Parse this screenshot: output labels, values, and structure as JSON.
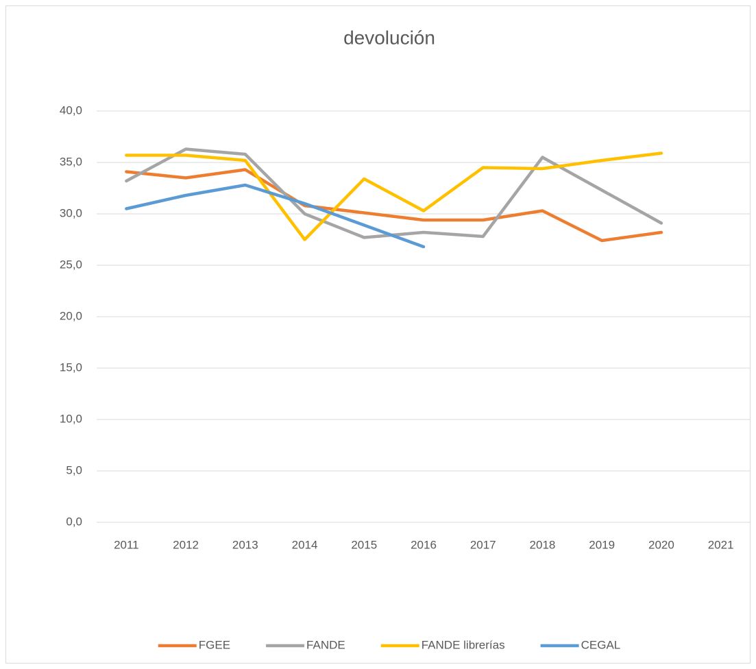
{
  "chart_data": {
    "type": "line",
    "title": "devolución",
    "categories": [
      "2011",
      "2012",
      "2013",
      "2014",
      "2015",
      "2016",
      "2017",
      "2018",
      "2019",
      "2020",
      "2021"
    ],
    "series": [
      {
        "name": "FGEE",
        "color": "#ed7d31",
        "values": [
          34.1,
          33.5,
          34.3,
          30.8,
          30.1,
          29.4,
          29.4,
          30.3,
          27.4,
          28.2,
          null
        ]
      },
      {
        "name": "FANDE",
        "color": "#a5a5a5",
        "values": [
          33.2,
          36.3,
          35.8,
          30.0,
          27.7,
          28.2,
          27.8,
          35.5,
          32.3,
          29.1,
          null
        ]
      },
      {
        "name": "FANDE librerías",
        "color": "#ffc000",
        "values": [
          35.7,
          35.7,
          35.2,
          27.5,
          33.4,
          30.3,
          34.5,
          34.4,
          35.2,
          35.9,
          null
        ]
      },
      {
        "name": "CEGAL",
        "color": "#5b9bd5",
        "values": [
          30.5,
          31.8,
          32.8,
          31.0,
          28.9,
          26.8,
          null,
          null,
          null,
          null,
          null
        ]
      }
    ],
    "ylim": [
      0,
      40
    ],
    "yticks": [
      {
        "value": 0,
        "label": "0,0"
      },
      {
        "value": 5,
        "label": "5,0"
      },
      {
        "value": 10,
        "label": "10,0"
      },
      {
        "value": 15,
        "label": "15,0"
      },
      {
        "value": 20,
        "label": "20,0"
      },
      {
        "value": 25,
        "label": "25,0"
      },
      {
        "value": 30,
        "label": "30,0"
      },
      {
        "value": 35,
        "label": "35,0"
      },
      {
        "value": 40,
        "label": "40,0"
      }
    ],
    "grid": true,
    "legend": "bottom"
  }
}
